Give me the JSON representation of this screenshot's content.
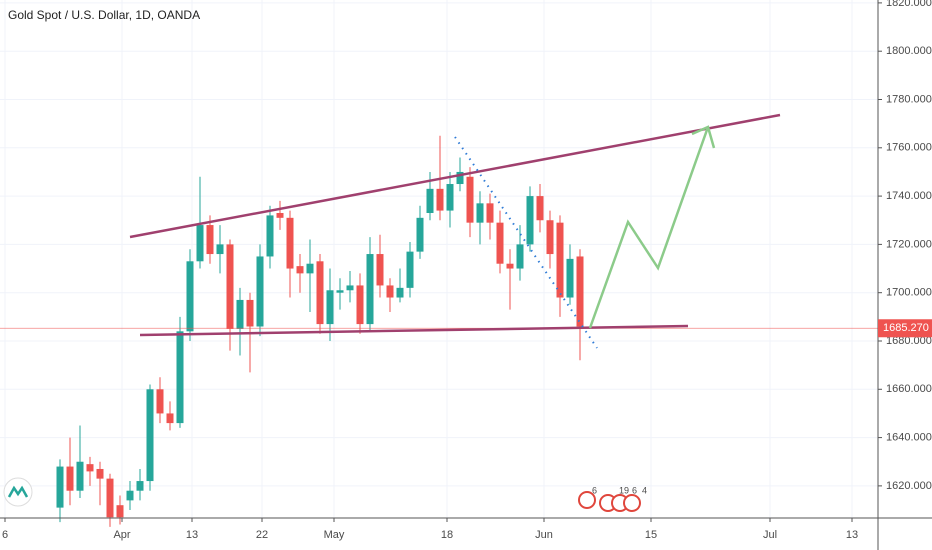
{
  "chart_data": {
    "type": "candlestick",
    "title": "Gold Spot / U.S. Dollar, 1D, OANDA",
    "up_color": "#26a69a",
    "down_color": "#ef5350",
    "open": [
      1611,
      1628,
      1618,
      1629,
      1627,
      1623,
      1612,
      1614,
      1618,
      1622,
      1660,
      1650,
      1646,
      1684,
      1713,
      1728,
      1716,
      1720,
      1685,
      1697,
      1686,
      1715,
      1733,
      1731,
      1711,
      1708,
      1713,
      1687,
      1700,
      1701,
      1703,
      1687,
      1716,
      1703,
      1698,
      1702,
      1717,
      1733,
      1743,
      1734,
      1745,
      1748,
      1729,
      1737,
      1729,
      1712,
      1710,
      1720,
      1740,
      1730,
      1729,
      1698,
      1715
    ],
    "high": [
      1631,
      1640,
      1645,
      1632,
      1630,
      1625,
      1616,
      1622,
      1627,
      1662,
      1665,
      1655,
      1690,
      1718,
      1748,
      1732,
      1728,
      1722,
      1702,
      1700,
      1720,
      1736,
      1738,
      1734,
      1716,
      1722,
      1716,
      1710,
      1706,
      1709,
      1708,
      1723,
      1724,
      1706,
      1710,
      1721,
      1736,
      1750,
      1765,
      1750,
      1756,
      1752,
      1742,
      1741,
      1734,
      1718,
      1728,
      1744,
      1745,
      1734,
      1732,
      1720,
      1718
    ],
    "low": [
      1605,
      1612,
      1615,
      1620,
      1612,
      1603,
      1604,
      1610,
      1614,
      1618,
      1646,
      1643,
      1644,
      1680,
      1710,
      1712,
      1708,
      1676,
      1674,
      1667,
      1682,
      1710,
      1726,
      1698,
      1700,
      1692,
      1683,
      1680,
      1693,
      1696,
      1683,
      1684,
      1698,
      1692,
      1696,
      1698,
      1714,
      1730,
      1730,
      1727,
      1742,
      1723,
      1720,
      1722,
      1708,
      1693,
      1705,
      1717,
      1725,
      1710,
      1690,
      1695,
      1672
    ],
    "close": [
      1628,
      1618,
      1630,
      1626,
      1623,
      1607,
      1607,
      1618,
      1622,
      1660,
      1650,
      1646,
      1684,
      1713,
      1728,
      1716,
      1720,
      1685,
      1697,
      1686,
      1715,
      1732,
      1731,
      1710,
      1708,
      1712,
      1687,
      1701,
      1701,
      1703,
      1687,
      1716,
      1703,
      1698,
      1702,
      1717,
      1731,
      1743,
      1734,
      1745,
      1750,
      1729,
      1737,
      1729,
      1712,
      1710,
      1720,
      1740,
      1730,
      1716,
      1698,
      1714,
      1686
    ],
    "last_price": {
      "value": 1685.27,
      "label": "1685.270"
    },
    "ylim": [
      1606.7,
      1821.2
    ],
    "yticks": [
      {
        "value": 1620,
        "label": "1620.000"
      },
      {
        "value": 1640,
        "label": "1640.000"
      },
      {
        "value": 1660,
        "label": "1660.000"
      },
      {
        "value": 1680,
        "label": "1680.000"
      },
      {
        "value": 1700,
        "label": "1700.000"
      },
      {
        "value": 1720,
        "label": "1720.000"
      },
      {
        "value": 1740,
        "label": "1740.000"
      },
      {
        "value": 1760,
        "label": "1760.000"
      },
      {
        "value": 1780,
        "label": "1780.000"
      },
      {
        "value": 1800,
        "label": "1800.000"
      },
      {
        "value": 1820,
        "label": "1820.000"
      }
    ],
    "xlim": [
      -6,
      81.8
    ],
    "xticks": [
      {
        "value": -5.5,
        "label": "6"
      },
      {
        "value": 6.2,
        "label": "Apr"
      },
      {
        "value": 13.2,
        "label": "13"
      },
      {
        "value": 20.2,
        "label": "22"
      },
      {
        "value": 27.4,
        "label": "May"
      },
      {
        "value": 38.7,
        "label": "18"
      },
      {
        "value": 48.4,
        "label": "Jun"
      },
      {
        "value": 59.1,
        "label": "15"
      },
      {
        "value": 71,
        "label": "Jul"
      },
      {
        "value": 79.2,
        "label": "13"
      }
    ],
    "grid": true,
    "events": [
      "6",
      "19",
      "6",
      "4"
    ]
  }
}
